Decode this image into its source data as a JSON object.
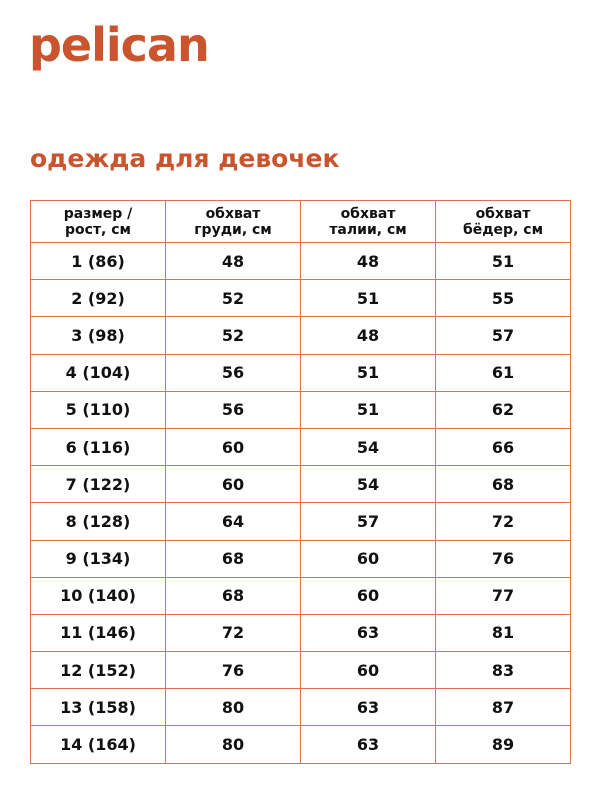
{
  "brand": {
    "logo": "pelican",
    "color": "#c9542e"
  },
  "title": "одежда для девочек",
  "table": {
    "border_color": "#e0704f",
    "headers": [
      [
        "размер /",
        "рост, см"
      ],
      [
        "обхват",
        "груди, см"
      ],
      [
        "обхват",
        "талии, см"
      ],
      [
        "обхват",
        "бёдер, см"
      ]
    ],
    "rows": [
      [
        "1 (86)",
        "48",
        "48",
        "51"
      ],
      [
        "2 (92)",
        "52",
        "51",
        "55"
      ],
      [
        "3 (98)",
        "52",
        "48",
        "57"
      ],
      [
        "4 (104)",
        "56",
        "51",
        "61"
      ],
      [
        "5 (110)",
        "56",
        "51",
        "62"
      ],
      [
        "6 (116)",
        "60",
        "54",
        "66"
      ],
      [
        "7 (122)",
        "60",
        "54",
        "68"
      ],
      [
        "8 (128)",
        "64",
        "57",
        "72"
      ],
      [
        "9 (134)",
        "68",
        "60",
        "76"
      ],
      [
        "10 (140)",
        "68",
        "60",
        "77"
      ],
      [
        "11 (146)",
        "72",
        "63",
        "81"
      ],
      [
        "12 (152)",
        "76",
        "60",
        "83"
      ],
      [
        "13 (158)",
        "80",
        "63",
        "87"
      ],
      [
        "14 (164)",
        "80",
        "63",
        "89"
      ]
    ]
  }
}
